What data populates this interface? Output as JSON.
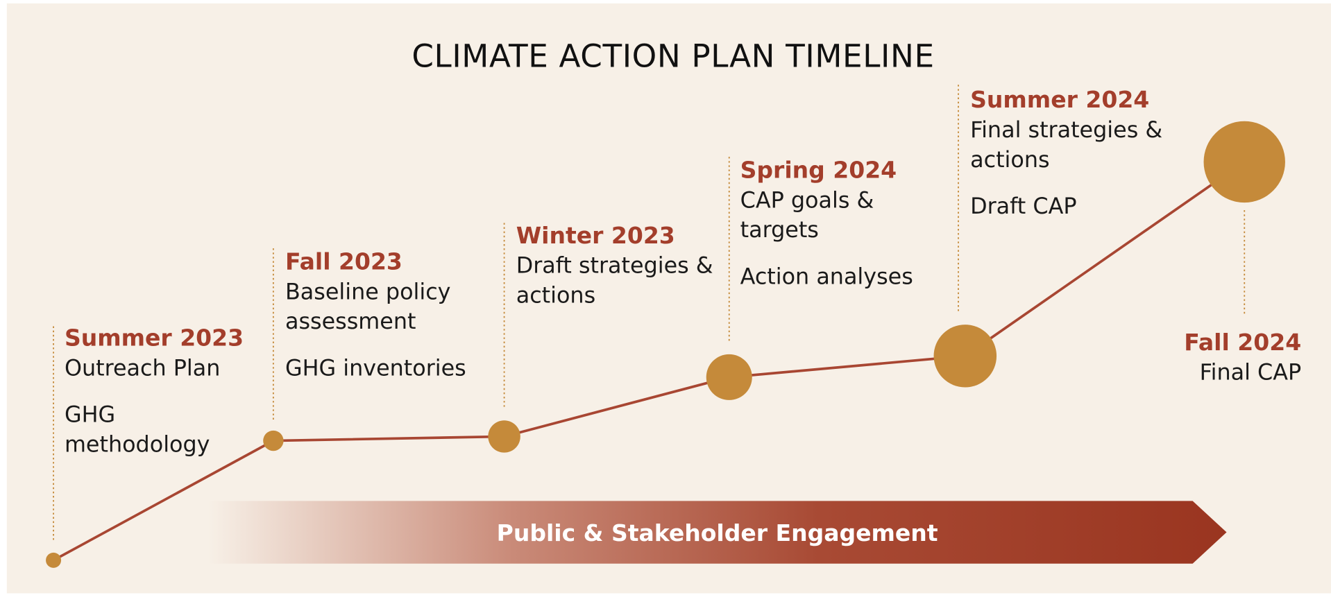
{
  "title": "CLIMATE ACTION PLAN TIMELINE",
  "milestones": [
    {
      "season": "Summer 2023",
      "items": [
        [
          "Outreach Plan"
        ],
        [
          "GHG",
          "methodology"
        ]
      ]
    },
    {
      "season": "Fall 2023",
      "items": [
        [
          "Baseline policy",
          "assessment"
        ],
        [
          "GHG inventories"
        ]
      ]
    },
    {
      "season": "Winter 2023",
      "items": [
        [
          "Draft strategies &",
          "actions"
        ]
      ]
    },
    {
      "season": "Spring 2024",
      "items": [
        [
          "CAP goals &",
          "targets"
        ],
        [
          "Action analyses"
        ]
      ]
    },
    {
      "season": "Summer 2024",
      "items": [
        [
          "Final strategies &",
          "actions"
        ],
        [
          "Draft CAP"
        ]
      ]
    },
    {
      "season": "Fall 2024",
      "items": [
        [
          "Final CAP"
        ]
      ]
    }
  ],
  "banner": "Public & Stakeholder Engagement"
}
